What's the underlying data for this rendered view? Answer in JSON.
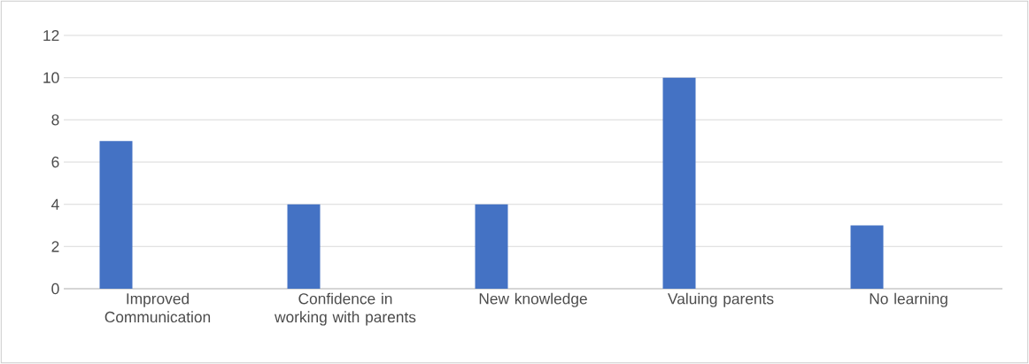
{
  "chart_data": {
    "type": "bar",
    "categories": [
      "Improved Communication",
      "Confidence in working with parents",
      "New knowledge",
      "Valuing parents",
      "No learning"
    ],
    "values": [
      7,
      4,
      4,
      10,
      3
    ],
    "color": "#4472c4",
    "ylim": [
      0,
      12
    ],
    "yticks": [
      0,
      2,
      4,
      6,
      8,
      10,
      12
    ],
    "grid": "y"
  }
}
